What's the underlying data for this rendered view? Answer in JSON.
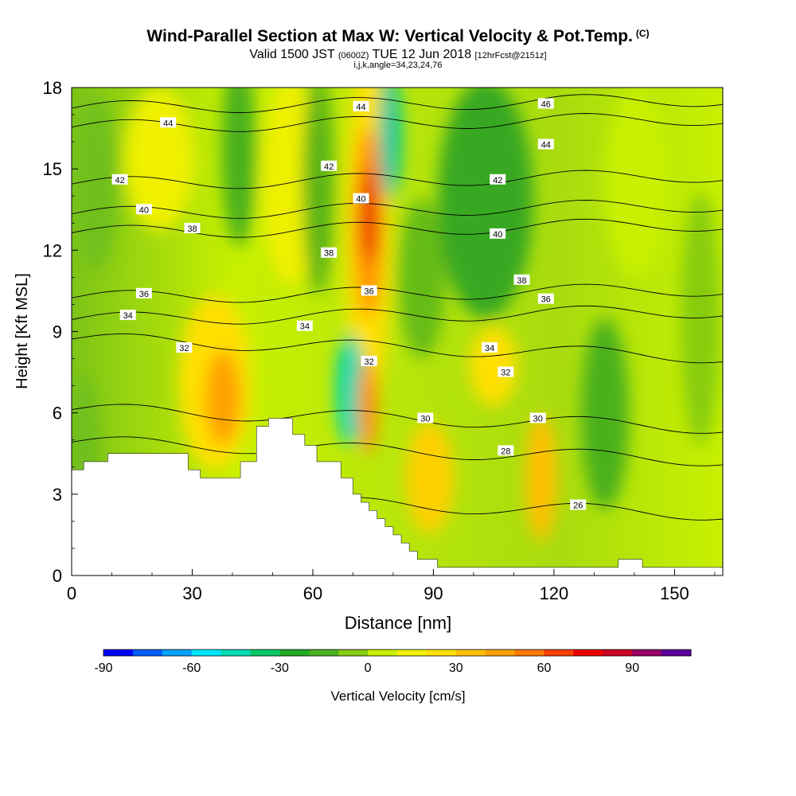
{
  "header": {
    "title": "Wind-Parallel Section at Max W: Vertical Velocity & Pot.Temp.",
    "title_tag": "(C)",
    "subtitle_a": "Valid 1500 JST",
    "subtitle_b": "(0600Z)",
    "subtitle_c": "TUE 12 Jun 2018",
    "subtitle_d": "[12hrFcst@2151z]",
    "subtitle2": "i,j,k,angle=34,23,24,76"
  },
  "chart_data": {
    "type": "heatmap",
    "xlabel": "Distance [nm]",
    "ylabel": "Height [Kft MSL]",
    "xlim": [
      0,
      162
    ],
    "ylim": [
      0,
      18
    ],
    "xticks": [
      0,
      30,
      60,
      90,
      120,
      150
    ],
    "yticks": [
      0,
      3,
      6,
      9,
      12,
      15,
      18
    ],
    "colorbar": {
      "label": "Vertical Velocity [cm/s]",
      "range": [
        -90,
        110
      ],
      "ticks": [
        -90,
        -60,
        -30,
        0,
        30,
        60,
        90
      ],
      "colors": [
        "#0000ff",
        "#005cff",
        "#00a0ff",
        "#00e5ff",
        "#00dcb4",
        "#00c864",
        "#22aa22",
        "#4ab01e",
        "#86cc10",
        "#c8f000",
        "#f0f000",
        "#ffe000",
        "#ffc000",
        "#ffa000",
        "#ff7800",
        "#ff4000",
        "#ee0000",
        "#cc0022",
        "#990066",
        "#5b0099"
      ]
    },
    "theta_contours": [
      {
        "value": 26,
        "x": 126,
        "y": 2.6
      },
      {
        "value": 28,
        "x": 108,
        "y": 4.6
      },
      {
        "value": 30,
        "x": 88,
        "y": 5.8
      },
      {
        "value": 30,
        "x": 116,
        "y": 5.8
      },
      {
        "value": 32,
        "x": 28,
        "y": 8.4
      },
      {
        "value": 32,
        "x": 74,
        "y": 7.9
      },
      {
        "value": 32,
        "x": 108,
        "y": 7.5
      },
      {
        "value": 34,
        "x": 14,
        "y": 9.6
      },
      {
        "value": 34,
        "x": 58,
        "y": 9.2
      },
      {
        "value": 34,
        "x": 104,
        "y": 8.4
      },
      {
        "value": 36,
        "x": 18,
        "y": 10.4
      },
      {
        "value": 36,
        "x": 74,
        "y": 10.5
      },
      {
        "value": 36,
        "x": 118,
        "y": 10.2
      },
      {
        "value": 38,
        "x": 30,
        "y": 12.8
      },
      {
        "value": 38,
        "x": 64,
        "y": 11.9
      },
      {
        "value": 38,
        "x": 112,
        "y": 10.9
      },
      {
        "value": 40,
        "x": 18,
        "y": 13.5
      },
      {
        "value": 40,
        "x": 72,
        "y": 13.9
      },
      {
        "value": 40,
        "x": 106,
        "y": 12.6
      },
      {
        "value": 42,
        "x": 12,
        "y": 14.6
      },
      {
        "value": 42,
        "x": 64,
        "y": 15.1
      },
      {
        "value": 42,
        "x": 106,
        "y": 14.6
      },
      {
        "value": 44,
        "x": 24,
        "y": 16.7
      },
      {
        "value": 44,
        "x": 72,
        "y": 17.3
      },
      {
        "value": 44,
        "x": 118,
        "y": 15.9
      },
      {
        "value": 46,
        "x": 118,
        "y": 17.4
      }
    ],
    "terrain_kft": [
      [
        0,
        3.9
      ],
      [
        3,
        3.9
      ],
      [
        3,
        4.2
      ],
      [
        9,
        4.2
      ],
      [
        9,
        4.5
      ],
      [
        29,
        4.5
      ],
      [
        29,
        3.9
      ],
      [
        32,
        3.9
      ],
      [
        32,
        3.6
      ],
      [
        42,
        3.6
      ],
      [
        42,
        4.2
      ],
      [
        46,
        4.2
      ],
      [
        46,
        5.5
      ],
      [
        49,
        5.5
      ],
      [
        49,
        5.8
      ],
      [
        55,
        5.8
      ],
      [
        55,
        5.2
      ],
      [
        58,
        5.2
      ],
      [
        58,
        4.8
      ],
      [
        61,
        4.8
      ],
      [
        61,
        4.2
      ],
      [
        67,
        4.2
      ],
      [
        67,
        3.6
      ],
      [
        70,
        3.6
      ],
      [
        70,
        3.0
      ],
      [
        72,
        3.0
      ],
      [
        72,
        2.7
      ],
      [
        74,
        2.7
      ],
      [
        74,
        2.4
      ],
      [
        76,
        2.4
      ],
      [
        76,
        2.1
      ],
      [
        78,
        2.1
      ],
      [
        78,
        1.8
      ],
      [
        80,
        1.8
      ],
      [
        80,
        1.5
      ],
      [
        82,
        1.5
      ],
      [
        82,
        1.2
      ],
      [
        84,
        1.2
      ],
      [
        84,
        0.9
      ],
      [
        86,
        0.9
      ],
      [
        86,
        0.6
      ],
      [
        91,
        0.6
      ],
      [
        91,
        0.3
      ],
      [
        136,
        0.3
      ],
      [
        136,
        0.6
      ],
      [
        142,
        0.6
      ],
      [
        142,
        0.3
      ],
      [
        162,
        0.3
      ]
    ]
  }
}
